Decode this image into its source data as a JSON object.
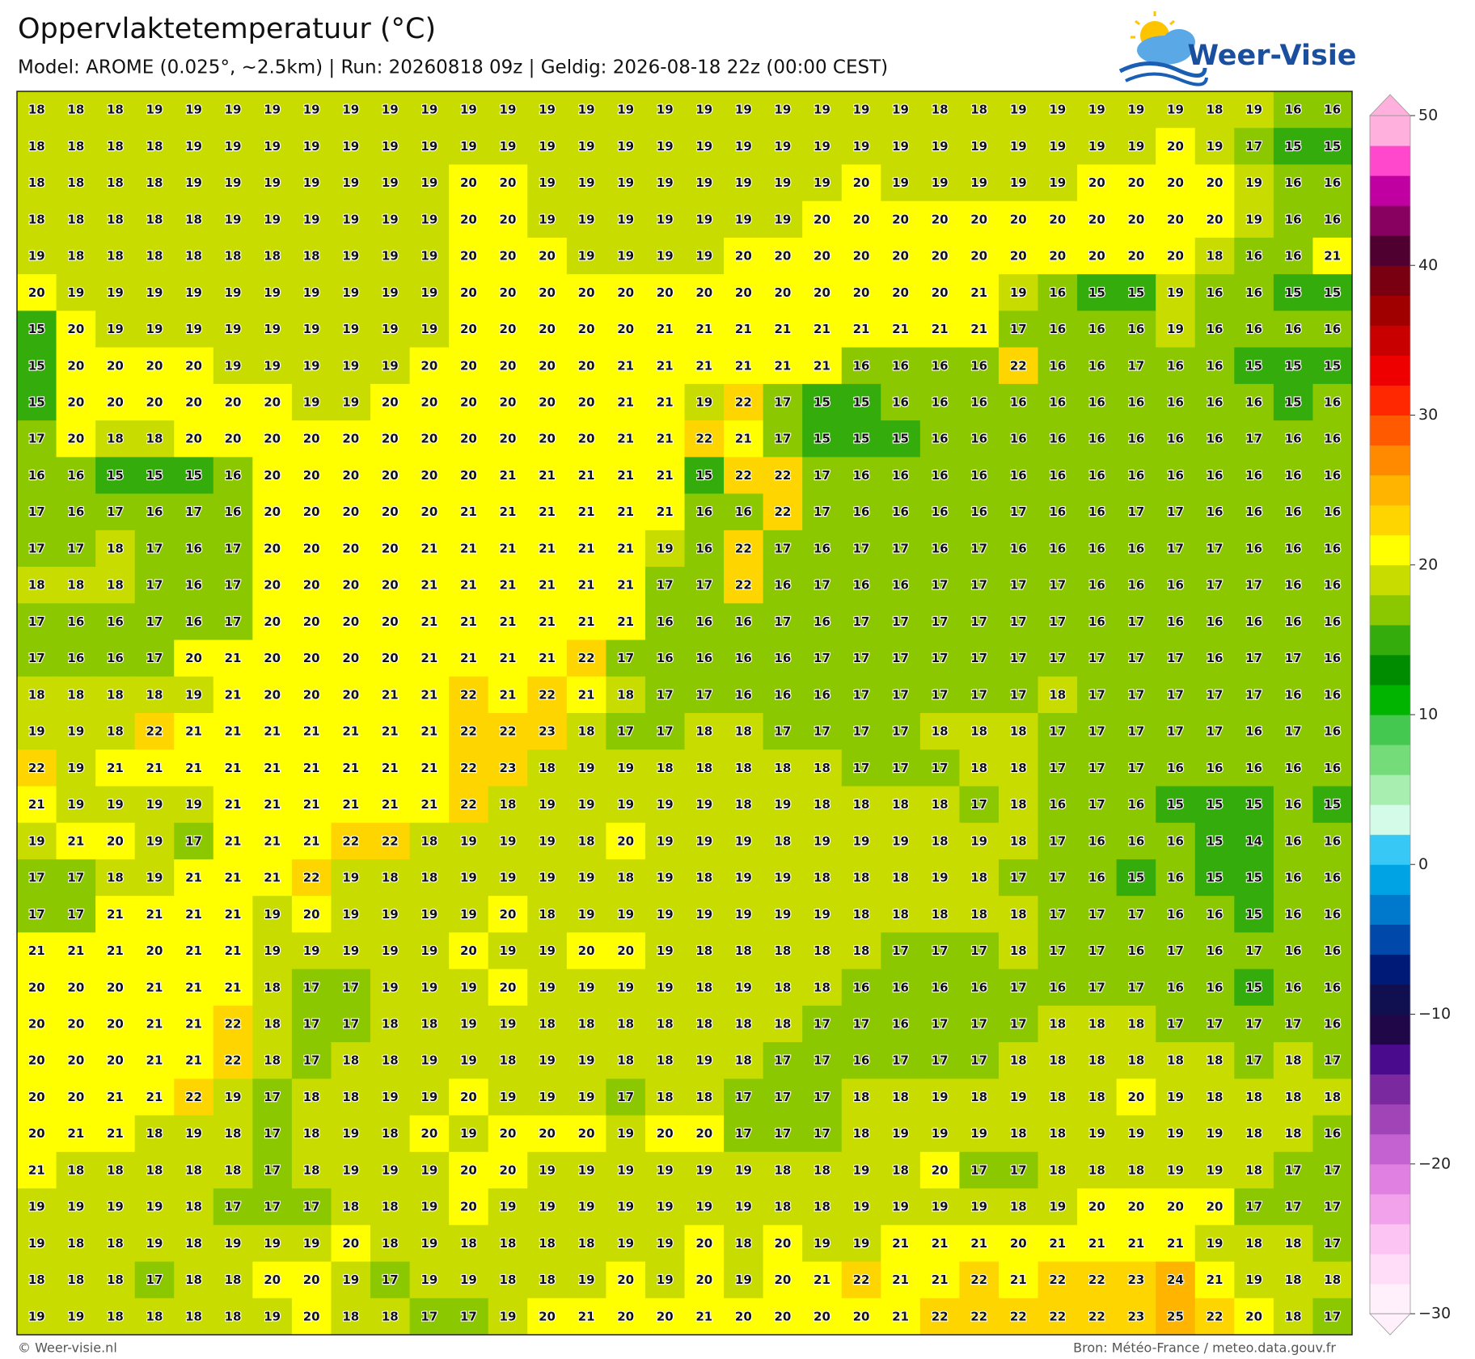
{
  "chart_data": {
    "type": "heatmap",
    "title": "Oppervlaktetemperatuur (°C)",
    "subtitle": "Model: AROME (0.025°, ~2.5km)  |  Run: 20260818 09z  |  Geldig: 2026-08-18 22z (00:00 CEST)",
    "logo": "Weer-Visie",
    "footer_left": "© Weer-visie.nl",
    "footer_right": "Bron: Météo-France / meteo.data.gouv.fr",
    "values": [
      [
        18,
        18,
        18,
        19,
        19,
        19,
        19,
        19,
        19,
        19,
        19,
        19,
        19,
        19,
        19,
        19,
        19,
        19,
        19,
        19,
        19,
        19,
        19,
        18,
        18,
        19,
        19,
        19,
        19,
        19,
        18,
        19,
        16,
        16
      ],
      [
        18,
        18,
        18,
        18,
        19,
        19,
        19,
        19,
        19,
        19,
        19,
        19,
        19,
        19,
        19,
        19,
        19,
        19,
        19,
        19,
        19,
        19,
        19,
        19,
        19,
        19,
        19,
        19,
        19,
        20,
        19,
        17,
        15,
        15
      ],
      [
        18,
        18,
        18,
        18,
        19,
        19,
        19,
        19,
        19,
        19,
        19,
        20,
        20,
        19,
        19,
        19,
        19,
        19,
        19,
        19,
        19,
        20,
        19,
        19,
        19,
        19,
        19,
        20,
        20,
        20,
        20,
        19,
        16,
        16
      ],
      [
        18,
        18,
        18,
        18,
        18,
        19,
        19,
        19,
        19,
        19,
        19,
        20,
        20,
        19,
        19,
        19,
        19,
        19,
        19,
        19,
        20,
        20,
        20,
        20,
        20,
        20,
        20,
        20,
        20,
        20,
        20,
        19,
        16,
        16
      ],
      [
        19,
        18,
        18,
        18,
        18,
        18,
        18,
        18,
        19,
        19,
        19,
        20,
        20,
        20,
        19,
        19,
        19,
        19,
        20,
        20,
        20,
        20,
        20,
        20,
        20,
        20,
        20,
        20,
        20,
        20,
        18,
        16,
        16,
        21
      ],
      [
        20,
        19,
        19,
        19,
        19,
        19,
        19,
        19,
        19,
        19,
        19,
        20,
        20,
        20,
        20,
        20,
        20,
        20,
        20,
        20,
        20,
        20,
        20,
        20,
        21,
        19,
        16,
        15,
        15,
        19,
        16,
        16,
        15,
        15
      ],
      [
        15,
        20,
        19,
        19,
        19,
        19,
        19,
        19,
        19,
        19,
        19,
        20,
        20,
        20,
        20,
        20,
        21,
        21,
        21,
        21,
        21,
        21,
        21,
        21,
        21,
        17,
        16,
        16,
        16,
        19,
        16,
        16,
        16,
        16
      ],
      [
        15,
        20,
        20,
        20,
        20,
        19,
        19,
        19,
        19,
        19,
        20,
        20,
        20,
        20,
        20,
        21,
        21,
        21,
        21,
        21,
        21,
        16,
        16,
        16,
        16,
        22,
        16,
        16,
        17,
        16,
        16,
        15,
        15,
        15
      ],
      [
        15,
        20,
        20,
        20,
        20,
        20,
        20,
        19,
        19,
        20,
        20,
        20,
        20,
        20,
        20,
        21,
        21,
        19,
        22,
        17,
        15,
        15,
        16,
        16,
        16,
        16,
        16,
        16,
        16,
        16,
        16,
        16,
        15,
        16
      ],
      [
        17,
        20,
        18,
        18,
        20,
        20,
        20,
        20,
        20,
        20,
        20,
        20,
        20,
        20,
        20,
        21,
        21,
        22,
        21,
        17,
        15,
        15,
        15,
        16,
        16,
        16,
        16,
        16,
        16,
        16,
        16,
        17,
        16,
        16
      ],
      [
        16,
        16,
        15,
        15,
        15,
        16,
        20,
        20,
        20,
        20,
        20,
        20,
        21,
        21,
        21,
        21,
        21,
        15,
        22,
        22,
        17,
        16,
        16,
        16,
        16,
        16,
        16,
        16,
        16,
        16,
        16,
        16,
        16,
        16
      ],
      [
        17,
        16,
        17,
        16,
        17,
        16,
        20,
        20,
        20,
        20,
        20,
        21,
        21,
        21,
        21,
        21,
        21,
        16,
        16,
        22,
        17,
        16,
        16,
        16,
        16,
        17,
        16,
        16,
        17,
        17,
        16,
        16,
        16,
        16
      ],
      [
        17,
        17,
        18,
        17,
        16,
        17,
        20,
        20,
        20,
        20,
        21,
        21,
        21,
        21,
        21,
        21,
        19,
        16,
        22,
        17,
        16,
        17,
        17,
        16,
        17,
        16,
        16,
        16,
        16,
        17,
        17,
        16,
        16,
        16
      ],
      [
        18,
        18,
        18,
        17,
        16,
        17,
        20,
        20,
        20,
        20,
        21,
        21,
        21,
        21,
        21,
        21,
        17,
        17,
        22,
        16,
        17,
        16,
        16,
        17,
        17,
        17,
        17,
        16,
        16,
        16,
        17,
        17,
        16,
        16
      ],
      [
        17,
        16,
        16,
        17,
        16,
        17,
        20,
        20,
        20,
        20,
        21,
        21,
        21,
        21,
        21,
        21,
        16,
        16,
        16,
        17,
        16,
        17,
        17,
        17,
        17,
        17,
        17,
        16,
        17,
        16,
        16,
        16,
        16,
        16
      ],
      [
        17,
        16,
        16,
        17,
        20,
        21,
        20,
        20,
        20,
        20,
        21,
        21,
        21,
        21,
        22,
        17,
        16,
        16,
        16,
        16,
        17,
        17,
        17,
        17,
        17,
        17,
        17,
        17,
        17,
        17,
        16,
        17,
        17,
        16
      ],
      [
        18,
        18,
        18,
        18,
        19,
        21,
        20,
        20,
        20,
        21,
        21,
        22,
        21,
        22,
        21,
        18,
        17,
        17,
        16,
        16,
        16,
        17,
        17,
        17,
        17,
        17,
        18,
        17,
        17,
        17,
        17,
        17,
        16,
        16
      ],
      [
        19,
        19,
        18,
        22,
        21,
        21,
        21,
        21,
        21,
        21,
        21,
        22,
        22,
        23,
        18,
        17,
        17,
        18,
        18,
        17,
        17,
        17,
        17,
        18,
        18,
        18,
        17,
        17,
        17,
        17,
        17,
        16,
        17,
        16
      ],
      [
        22,
        19,
        21,
        21,
        21,
        21,
        21,
        21,
        21,
        21,
        21,
        22,
        23,
        18,
        19,
        19,
        18,
        18,
        18,
        18,
        18,
        17,
        17,
        17,
        18,
        18,
        17,
        17,
        17,
        16,
        16,
        16,
        16,
        16
      ],
      [
        21,
        19,
        19,
        19,
        19,
        21,
        21,
        21,
        21,
        21,
        21,
        22,
        18,
        19,
        19,
        19,
        19,
        19,
        18,
        19,
        18,
        18,
        18,
        18,
        17,
        18,
        16,
        17,
        16,
        15,
        15,
        15,
        16,
        15
      ],
      [
        19,
        21,
        20,
        19,
        17,
        21,
        21,
        21,
        22,
        22,
        18,
        19,
        19,
        19,
        18,
        20,
        19,
        19,
        19,
        18,
        19,
        19,
        19,
        18,
        19,
        18,
        17,
        16,
        16,
        16,
        15,
        14,
        16,
        16
      ],
      [
        17,
        17,
        18,
        19,
        21,
        21,
        21,
        22,
        19,
        18,
        18,
        19,
        19,
        19,
        19,
        18,
        19,
        18,
        19,
        19,
        18,
        18,
        18,
        19,
        18,
        17,
        17,
        16,
        15,
        16,
        15,
        15,
        16,
        16
      ],
      [
        17,
        17,
        21,
        21,
        21,
        21,
        19,
        20,
        19,
        19,
        19,
        19,
        20,
        18,
        19,
        19,
        19,
        19,
        19,
        19,
        19,
        18,
        18,
        18,
        18,
        18,
        17,
        17,
        17,
        16,
        16,
        15,
        16,
        16
      ],
      [
        21,
        21,
        21,
        20,
        21,
        21,
        19,
        19,
        19,
        19,
        19,
        20,
        19,
        19,
        20,
        20,
        19,
        18,
        18,
        18,
        18,
        18,
        17,
        17,
        17,
        18,
        17,
        17,
        16,
        17,
        16,
        17,
        16,
        16
      ],
      [
        20,
        20,
        20,
        21,
        21,
        21,
        18,
        17,
        17,
        19,
        19,
        19,
        20,
        19,
        19,
        19,
        19,
        18,
        19,
        18,
        18,
        16,
        16,
        16,
        16,
        17,
        16,
        17,
        17,
        16,
        16,
        15,
        16,
        16
      ],
      [
        20,
        20,
        20,
        21,
        21,
        22,
        18,
        17,
        17,
        18,
        18,
        19,
        19,
        18,
        18,
        18,
        18,
        18,
        18,
        18,
        17,
        17,
        16,
        17,
        17,
        17,
        18,
        18,
        18,
        17,
        17,
        17,
        17,
        16
      ],
      [
        20,
        20,
        20,
        21,
        21,
        22,
        18,
        17,
        18,
        18,
        19,
        19,
        18,
        19,
        19,
        18,
        18,
        19,
        18,
        17,
        17,
        16,
        17,
        17,
        17,
        18,
        18,
        18,
        18,
        18,
        18,
        17,
        18,
        17
      ],
      [
        20,
        20,
        21,
        21,
        22,
        19,
        17,
        18,
        18,
        19,
        19,
        20,
        19,
        19,
        19,
        17,
        18,
        18,
        17,
        17,
        17,
        18,
        18,
        19,
        18,
        19,
        18,
        18,
        20,
        19,
        18,
        18,
        18,
        18
      ],
      [
        20,
        21,
        21,
        18,
        19,
        18,
        17,
        18,
        19,
        18,
        20,
        19,
        20,
        20,
        20,
        19,
        20,
        20,
        17,
        17,
        17,
        18,
        19,
        19,
        19,
        18,
        18,
        19,
        19,
        19,
        19,
        18,
        18,
        16
      ],
      [
        21,
        18,
        18,
        18,
        18,
        18,
        17,
        18,
        19,
        19,
        19,
        20,
        20,
        19,
        19,
        19,
        19,
        19,
        19,
        18,
        18,
        19,
        18,
        20,
        17,
        17,
        18,
        18,
        18,
        19,
        19,
        18,
        17,
        17
      ],
      [
        19,
        19,
        19,
        19,
        18,
        17,
        17,
        17,
        18,
        18,
        19,
        20,
        19,
        19,
        19,
        19,
        19,
        19,
        19,
        18,
        18,
        19,
        19,
        19,
        19,
        18,
        19,
        20,
        20,
        20,
        20,
        17,
        17,
        17
      ],
      [
        19,
        18,
        18,
        19,
        18,
        19,
        19,
        19,
        20,
        18,
        19,
        18,
        18,
        18,
        18,
        19,
        19,
        20,
        18,
        20,
        19,
        19,
        21,
        21,
        21,
        20,
        21,
        21,
        21,
        21,
        19,
        18,
        18,
        17
      ],
      [
        18,
        18,
        18,
        17,
        18,
        18,
        20,
        20,
        19,
        17,
        19,
        19,
        18,
        18,
        19,
        20,
        19,
        20,
        19,
        20,
        21,
        22,
        21,
        21,
        22,
        21,
        22,
        22,
        23,
        24,
        21,
        19,
        18,
        18
      ],
      [
        19,
        19,
        18,
        18,
        18,
        18,
        19,
        20,
        18,
        18,
        17,
        17,
        19,
        20,
        21,
        20,
        20,
        21,
        20,
        20,
        20,
        20,
        21,
        22,
        22,
        22,
        22,
        22,
        23,
        25,
        22,
        20,
        18,
        17
      ]
    ],
    "colorbar": {
      "lim": [
        -30,
        50
      ],
      "ticks": [
        {
          "value": -30,
          "label": "−30"
        },
        {
          "value": -20,
          "label": "−20"
        },
        {
          "value": -10,
          "label": "−10"
        },
        0,
        10,
        20,
        30,
        40,
        50
      ],
      "colors": [
        "#fff0fc",
        "#ffdcf8",
        "#fcc4f2",
        "#f2a2ea",
        "#e080e0",
        "#c462d2",
        "#a044b8",
        "#7a2a9e",
        "#4a0c8c",
        "#200848",
        "#101050",
        "#001a78",
        "#0048aa",
        "#0078cc",
        "#00a4e4",
        "#38c8f6",
        "#d4fae8",
        "#a8eeb0",
        "#74dc78",
        "#44c850",
        "#00b400",
        "#008c00",
        "#34ac0c",
        "#8cc800",
        "#c8dc00",
        "#ffff00",
        "#ffd500",
        "#ffb400",
        "#ff8a00",
        "#ff5a00",
        "#ff2800",
        "#ee0000",
        "#c80000",
        "#a00000",
        "#780010",
        "#500030",
        "#880060",
        "#c000a0",
        "#ff48cc",
        "#ffb0dc"
      ]
    }
  }
}
